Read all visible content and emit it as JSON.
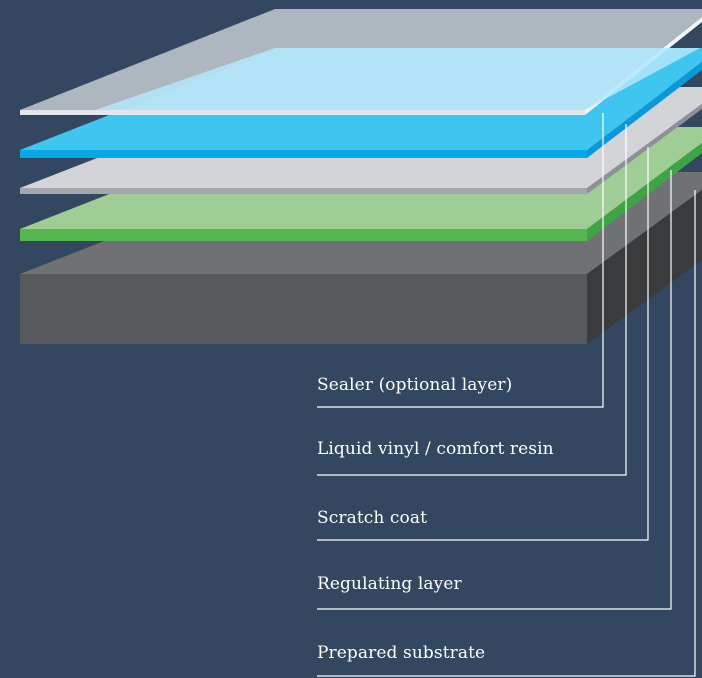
{
  "background_color": "#334860",
  "layers": [
    {
      "id": "sealer",
      "label": "Sealer (optional layer)",
      "color": "#b4bcc6"
    },
    {
      "id": "liquid-vinyl",
      "label": "Liquid vinyl / comfort resin",
      "color": "#3fc6f1"
    },
    {
      "id": "scratch-coat",
      "label": "Scratch coat",
      "color": "#d2d4d8"
    },
    {
      "id": "regulating-layer",
      "label": "Regulating layer",
      "color": "#9fce96"
    },
    {
      "id": "prepared-substrate",
      "label": "Prepared substrate",
      "color": "#595b5e"
    }
  ]
}
